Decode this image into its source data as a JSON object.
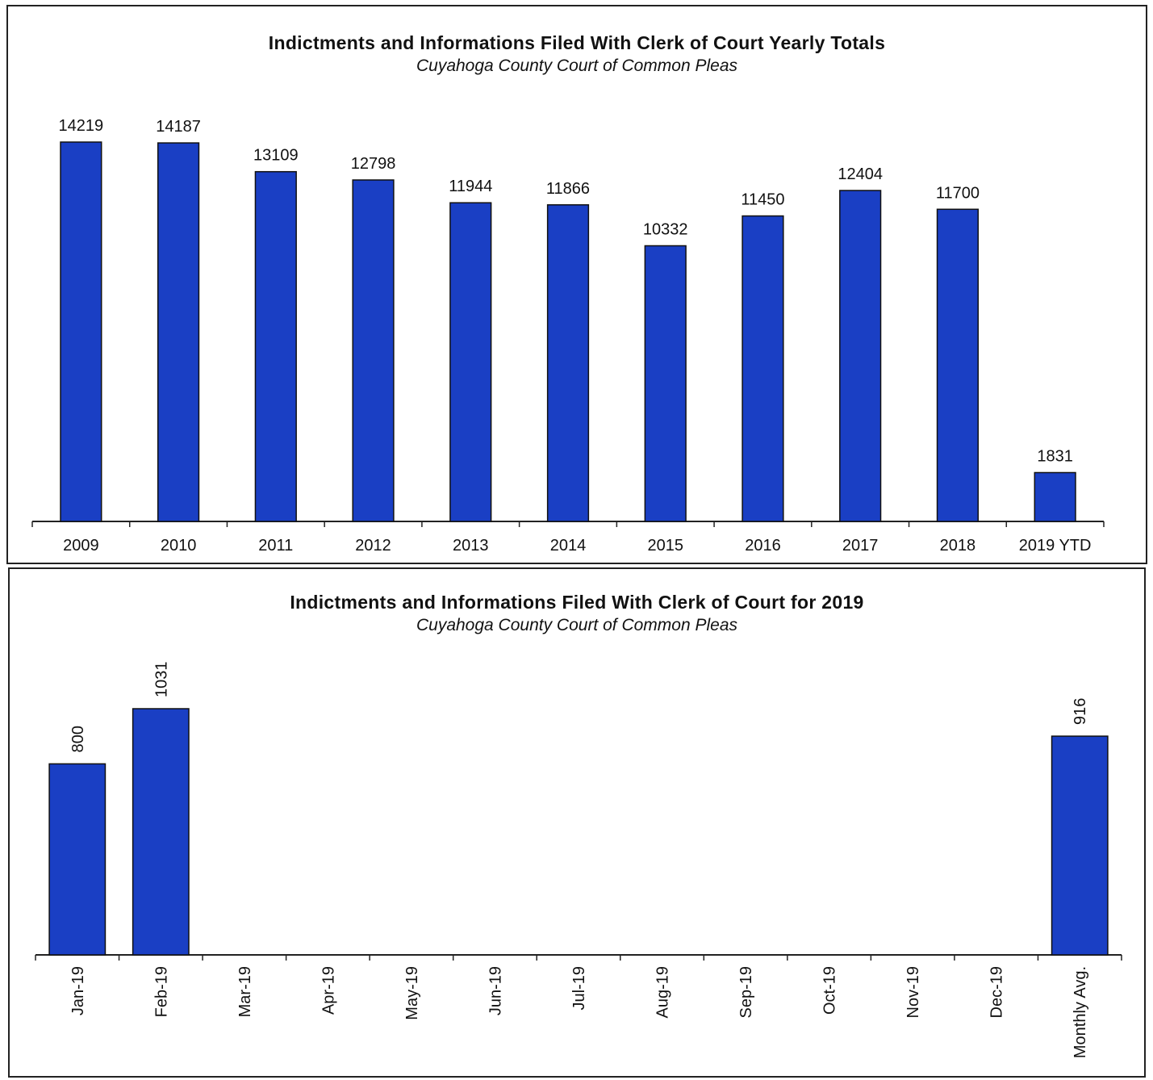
{
  "chart_data": [
    {
      "type": "bar",
      "title": "Indictments and Informations Filed With Clerk of Court Yearly Totals",
      "subtitle": "Cuyahoga County Court of Common Pleas",
      "categories": [
        "2009",
        "2010",
        "2011",
        "2012",
        "2013",
        "2014",
        "2015",
        "2016",
        "2017",
        "2018",
        "2019 YTD"
      ],
      "values": [
        14219,
        14187,
        13109,
        12798,
        11944,
        11866,
        10332,
        11450,
        12404,
        11700,
        1831
      ],
      "data_labels": [
        "14219",
        "14187",
        "13109",
        "12798",
        "11944",
        "11866",
        "10332",
        "11450",
        "12404",
        "11700",
        "1831"
      ],
      "bar_color": "#1a3fc4",
      "ylim": [
        0,
        14219
      ],
      "grid": false,
      "legend": "none"
    },
    {
      "type": "bar",
      "title": "Indictments and Informations Filed With Clerk of Court for 2019",
      "subtitle": "Cuyahoga County Court of Common Pleas",
      "categories": [
        "Jan-19",
        "Feb-19",
        "Mar-19",
        "Apr-19",
        "May-19",
        "Jun-19",
        "Jul-19",
        "Aug-19",
        "Sep-19",
        "Oct-19",
        "Nov-19",
        "Dec-19",
        "Monthly Avg."
      ],
      "values": [
        800,
        1031,
        null,
        null,
        null,
        null,
        null,
        null,
        null,
        null,
        null,
        null,
        916
      ],
      "data_labels": [
        "800",
        "1031",
        "",
        "",
        "",
        "",
        "",
        "",
        "",
        "",
        "",
        "",
        "916"
      ],
      "bar_color": "#1a3fc4",
      "ylim": [
        0,
        1031
      ],
      "grid": false,
      "legend": "none"
    }
  ]
}
